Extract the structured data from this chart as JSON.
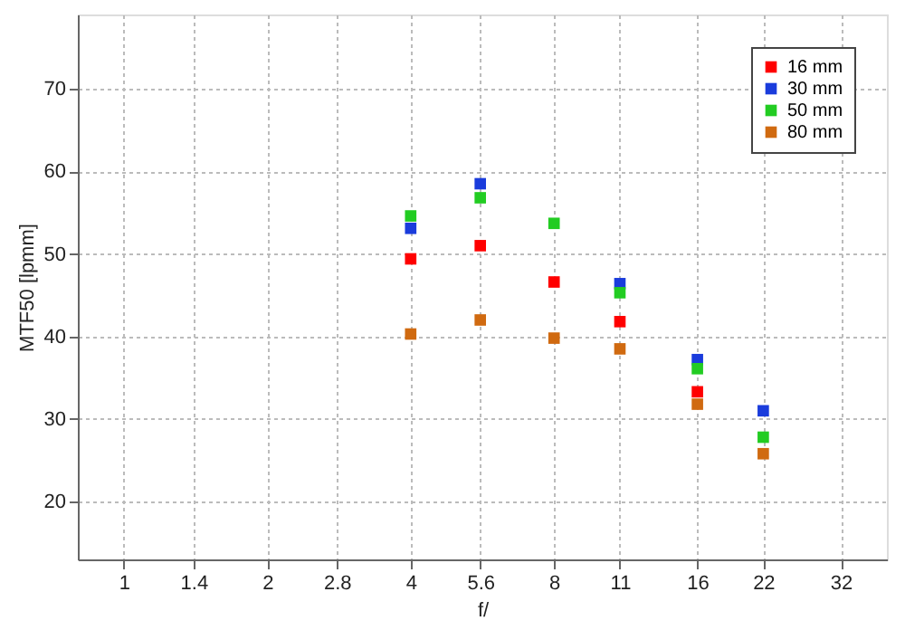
{
  "chart_data": {
    "type": "scatter",
    "xlabel": "f/",
    "ylabel": "MTF50 [lpmm]",
    "x": [
      4,
      5.6,
      8,
      11,
      16,
      22
    ],
    "series": [
      {
        "name": "16 mm",
        "color": "#ff0000",
        "values": [
          49.4,
          51.0,
          46.6,
          41.8,
          33.3,
          null
        ]
      },
      {
        "name": "30 mm",
        "color": "#1a3cdc",
        "values": [
          53.1,
          58.5,
          null,
          46.4,
          37.2,
          31.0
        ]
      },
      {
        "name": "50 mm",
        "color": "#22cc22",
        "values": [
          54.6,
          56.8,
          53.7,
          45.3,
          36.1,
          27.8
        ]
      },
      {
        "name": "80 mm",
        "color": "#d06a10",
        "values": [
          40.3,
          42.0,
          39.8,
          38.5,
          31.8,
          25.8
        ]
      }
    ],
    "log": "x",
    "xlim": [
      0.8,
      40
    ],
    "xticks": [
      1,
      1.4,
      2,
      2.8,
      4,
      5.6,
      8,
      11,
      16,
      22,
      32
    ],
    "ylim": [
      13,
      79
    ],
    "yticks": [
      20,
      30,
      40,
      50,
      60,
      70
    ],
    "grid": true,
    "legend": "top right",
    "marker": "square"
  }
}
